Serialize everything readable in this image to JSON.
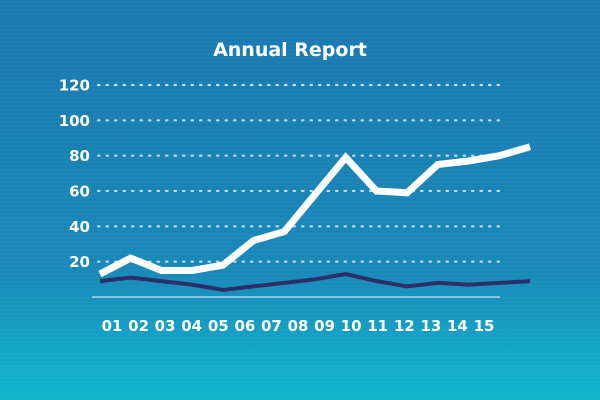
{
  "chart_data": {
    "type": "line",
    "title": "Annual Report",
    "xlabel": "",
    "ylabel": "",
    "x": [
      "01",
      "02",
      "03",
      "04",
      "05",
      "06",
      "07",
      "08",
      "09",
      "10",
      "11",
      "12",
      "13",
      "14",
      "15"
    ],
    "ylim": [
      0,
      120
    ],
    "yticks": [
      20,
      40,
      60,
      80,
      100,
      120
    ],
    "grid": true,
    "legend": "none",
    "series": [
      {
        "color": "#ffffff",
        "values": [
          13,
          22,
          15,
          15,
          18,
          32,
          37,
          58,
          79,
          60,
          59,
          75,
          77,
          80,
          85
        ]
      },
      {
        "color": "#2a2f6a",
        "values": [
          9,
          11,
          9,
          7,
          4,
          6,
          8,
          10,
          13,
          9,
          6,
          8,
          7,
          8,
          9
        ]
      }
    ]
  },
  "colors": {
    "background_top": "#1a78b0",
    "background_bottom": "#0fb7cf",
    "text": "#ffffff",
    "grid": "#b8dcec",
    "baseline": "#8fc3dc"
  }
}
